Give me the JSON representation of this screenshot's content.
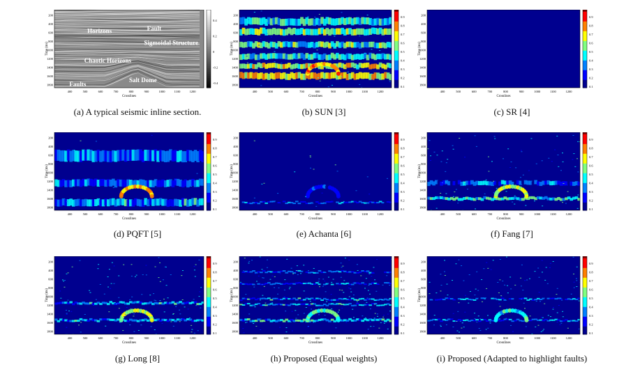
{
  "figure": {
    "panels": [
      {
        "id": "a",
        "caption": "(a)  A typical seismic inline section.",
        "kind": "seismic",
        "yticks": [
          "200",
          "400",
          "600",
          "800",
          "1000",
          "1200",
          "1400",
          "1600",
          "1800"
        ],
        "xticks": [
          "400",
          "500",
          "600",
          "700",
          "800",
          "900",
          "1000",
          "1100",
          "1200"
        ],
        "cbticks": [
          "0.4",
          "0.2",
          "0",
          "-0.2",
          "-0.4"
        ],
        "annotations": [
          "Horizons",
          "Fault",
          "Sigmoidal Structure",
          "Chaotic Horizons",
          "Salt Dome",
          "Faults"
        ]
      },
      {
        "id": "b",
        "caption": "(b)  SUN [3]",
        "kind": "sun",
        "yticks": [
          "200",
          "400",
          "600",
          "800",
          "1000",
          "1200",
          "1400",
          "1600",
          "1800"
        ],
        "xticks": [
          "400",
          "500",
          "600",
          "700",
          "800",
          "900",
          "1000",
          "1100",
          "1200"
        ],
        "cbticks": [
          "0.9",
          "0.8",
          "0.7",
          "0.6",
          "0.5",
          "0.4",
          "0.3",
          "0.2",
          "0.1"
        ]
      },
      {
        "id": "c",
        "caption": "(c)  SR [4]",
        "kind": "sr",
        "yticks": [
          "200",
          "400",
          "600",
          "800",
          "1000",
          "1200",
          "1400",
          "1600",
          "1800"
        ],
        "xticks": [
          "400",
          "500",
          "600",
          "700",
          "800",
          "900",
          "1000",
          "1100",
          "1200"
        ],
        "cbticks": [
          "0.9",
          "0.8",
          "0.7",
          "0.6",
          "0.5",
          "0.4",
          "0.3",
          "0.2",
          "0.1"
        ]
      },
      {
        "id": "d",
        "caption": "(d)  PQFT [5]",
        "kind": "pqft",
        "yticks": [
          "200",
          "400",
          "600",
          "800",
          "1000",
          "1200",
          "1400",
          "1600",
          "1800"
        ],
        "xticks": [
          "400",
          "500",
          "600",
          "700",
          "800",
          "900",
          "1000",
          "1100",
          "1200"
        ],
        "cbticks": [
          "0.9",
          "0.8",
          "0.7",
          "0.6",
          "0.5",
          "0.4",
          "0.3",
          "0.2",
          "0.1"
        ]
      },
      {
        "id": "e",
        "caption": "(e)  Achanta [6]",
        "kind": "achanta",
        "yticks": [
          "200",
          "400",
          "600",
          "800",
          "1000",
          "1200",
          "1400",
          "1600",
          "1800"
        ],
        "xticks": [
          "400",
          "500",
          "600",
          "700",
          "800",
          "900",
          "1000",
          "1100",
          "1200"
        ],
        "cbticks": [
          "0.9",
          "0.8",
          "0.7",
          "0.6",
          "0.5",
          "0.4",
          "0.3",
          "0.2",
          "0.1"
        ]
      },
      {
        "id": "f",
        "caption": "(f)  Fang [7]",
        "kind": "fang",
        "yticks": [
          "200",
          "400",
          "600",
          "800",
          "1000",
          "1200",
          "1400",
          "1600",
          "1800"
        ],
        "xticks": [
          "400",
          "500",
          "600",
          "700",
          "800",
          "900",
          "1000",
          "1100",
          "1200"
        ],
        "cbticks": [
          "0.9",
          "0.8",
          "0.7",
          "0.6",
          "0.5",
          "0.4",
          "0.3",
          "0.2",
          "0.1"
        ]
      },
      {
        "id": "g",
        "caption": "(g)  Long [8]",
        "kind": "long",
        "yticks": [
          "200",
          "400",
          "600",
          "800",
          "1000",
          "1200",
          "1400",
          "1600",
          "1800"
        ],
        "xticks": [
          "400",
          "500",
          "600",
          "700",
          "800",
          "900",
          "1000",
          "1100",
          "1200"
        ],
        "cbticks": [
          "0.9",
          "0.8",
          "0.7",
          "0.6",
          "0.5",
          "0.4",
          "0.3",
          "0.2",
          "0.1"
        ]
      },
      {
        "id": "h",
        "caption": "(h)  Proposed (Equal weights)",
        "kind": "proposed",
        "yticks": [
          "200",
          "400",
          "600",
          "800",
          "1000",
          "1200",
          "1400",
          "1600",
          "1800"
        ],
        "xticks": [
          "400",
          "500",
          "600",
          "700",
          "800",
          "900",
          "1000",
          "1100",
          "1200"
        ],
        "cbticks": [
          "0.9",
          "0.8",
          "0.7",
          "0.6",
          "0.5",
          "0.4",
          "0.3",
          "0.2",
          "0.1"
        ]
      },
      {
        "id": "i",
        "caption": "(i)  Proposed (Adapted to highlight faults)",
        "kind": "faults",
        "yticks": [
          "200",
          "400",
          "600",
          "800",
          "1000",
          "1200",
          "1400",
          "1600",
          "1800"
        ],
        "xticks": [
          "400",
          "500",
          "600",
          "700",
          "800",
          "900",
          "1000",
          "1100",
          "1200"
        ],
        "cbticks": [
          "0.9",
          "0.8",
          "0.7",
          "0.6",
          "0.5",
          "0.4",
          "0.3",
          "0.2",
          "0.1"
        ]
      }
    ],
    "xlabel": "Crosslines",
    "ylabel": "Time (ms)",
    "colormap": [
      "#00008f",
      "#0000ff",
      "#0080ff",
      "#00ffff",
      "#80ff80",
      "#ffff00",
      "#ff8000",
      "#ff0000",
      "#800000"
    ]
  }
}
